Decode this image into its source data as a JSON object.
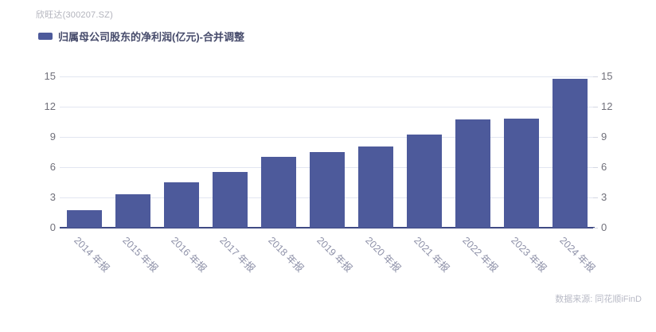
{
  "header": {
    "title": "欣旺达(300207.SZ)"
  },
  "legend": {
    "label": "归属母公司股东的净利润(亿元)-合并调整"
  },
  "chart_data": {
    "type": "bar",
    "title": "欣旺达(300207.SZ)",
    "series_name": "归属母公司股东的净利润(亿元)-合并调整",
    "categories": [
      "2014 年报",
      "2015 年报",
      "2016 年报",
      "2017 年报",
      "2018 年报",
      "2019 年报",
      "2020 年报",
      "2021 年报",
      "2022 年报",
      "2023 年报",
      "2024 年报"
    ],
    "values": [
      1.7,
      3.3,
      4.5,
      5.5,
      7.0,
      7.5,
      8.0,
      9.2,
      10.7,
      10.8,
      14.7
    ],
    "unit": "亿元",
    "ylim": [
      0,
      15
    ],
    "yticks": [
      0,
      3,
      6,
      9,
      12,
      15
    ],
    "y_axis_sides": [
      "left",
      "right"
    ],
    "grid": true,
    "legend_position": "top-left",
    "xlabel": "",
    "ylabel": ""
  },
  "colors": {
    "bar": "#4d5a9b",
    "axis_baseline": "#3f4a84",
    "gridline": "#e2e6f1",
    "y_label": "#70707a",
    "x_label": "#8f92a9",
    "legend_text": "#464b6b",
    "title_text": "#b2b3bc",
    "source_text": "#b8bac6"
  },
  "footer": {
    "source": "数据来源: 同花顺iFinD"
  }
}
